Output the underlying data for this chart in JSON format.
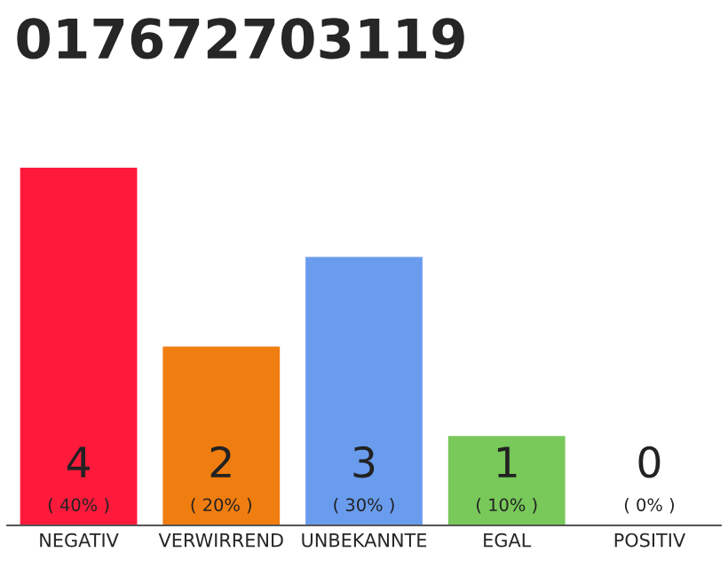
{
  "chart_data": {
    "type": "bar",
    "title": "017672703119",
    "categories": [
      "NEGATIV",
      "VERWIRREND",
      "UNBEKANNTE",
      "EGAL",
      "POSITIV"
    ],
    "values": [
      4,
      2,
      3,
      1,
      0
    ],
    "colors": [
      "#ff1a3c",
      "#f07d0f",
      "#6a9cee",
      "#78c85a",
      "#dddddd"
    ],
    "value_labels": [
      "4\n( 40% )",
      "2\n( 20% )",
      "3\n( 30% )",
      "1\n( 10% )",
      "0\n( 0% )"
    ],
    "tick_labels": "x",
    "grid": false,
    "legend": false
  }
}
